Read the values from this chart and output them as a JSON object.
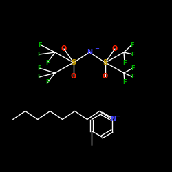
{
  "background_color": "#000000",
  "fig_size": [
    2.5,
    2.5
  ],
  "dpi": 100,
  "atom_colors": {
    "N_anion": "#4444ff",
    "S": "#c8a000",
    "O": "#ff2000",
    "F": "#00b400",
    "C": "#ffffff",
    "N_cation": "#4444ff"
  },
  "bond_color": "#ffffff",
  "bond_lw": 1.0
}
